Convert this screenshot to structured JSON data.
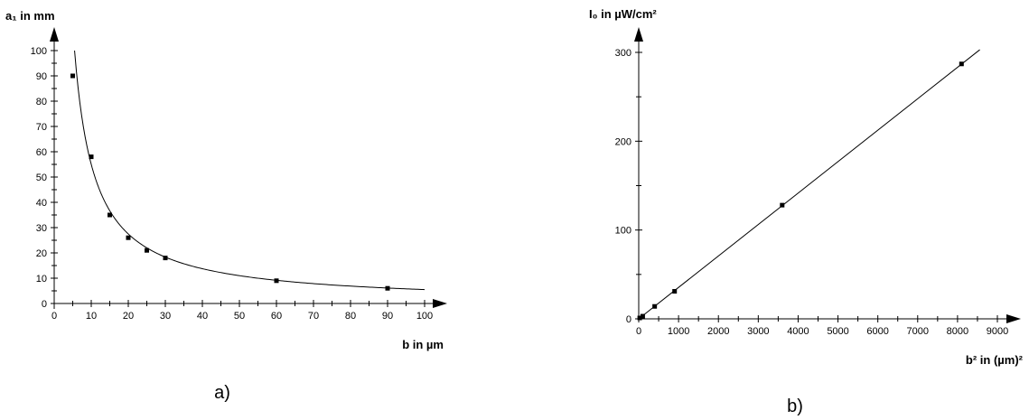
{
  "chart_data": [
    {
      "type": "scatter",
      "caption": "a)",
      "xlabel": "b in µm",
      "ylabel": "a₁ in mm",
      "xlim": [
        0,
        100
      ],
      "ylim": [
        0,
        100
      ],
      "x_ticks": [
        0,
        10,
        20,
        30,
        40,
        50,
        60,
        70,
        80,
        90,
        100
      ],
      "y_ticks": [
        0,
        10,
        20,
        30,
        40,
        50,
        60,
        70,
        80,
        90,
        100
      ],
      "grid": false,
      "series": [
        {
          "points": [
            {
              "x": 5,
              "y": 90
            },
            {
              "x": 10,
              "y": 58
            },
            {
              "x": 15,
              "y": 35
            },
            {
              "x": 20,
              "y": 26
            },
            {
              "x": 25,
              "y": 21
            },
            {
              "x": 30,
              "y": 18
            },
            {
              "x": 60,
              "y": 9
            },
            {
              "x": 90,
              "y": 6
            }
          ],
          "fit": {
            "form": "y = k / x",
            "k": 550
          }
        }
      ]
    },
    {
      "type": "scatter",
      "caption": "b)",
      "xlabel": "b² in (µm)²",
      "ylabel": "I₀ in µW/cm²",
      "xlim": [
        0,
        9000
      ],
      "ylim": [
        0,
        300
      ],
      "x_ticks": [
        0,
        1000,
        2000,
        3000,
        4000,
        5000,
        6000,
        7000,
        8000,
        9000
      ],
      "y_ticks": [
        0,
        100,
        200,
        300
      ],
      "grid": false,
      "series": [
        {
          "points": [
            {
              "x": 25,
              "y": 1
            },
            {
              "x": 100,
              "y": 3
            },
            {
              "x": 400,
              "y": 14
            },
            {
              "x": 900,
              "y": 31
            },
            {
              "x": 3600,
              "y": 128
            },
            {
              "x": 8100,
              "y": 287
            }
          ],
          "fit": {
            "form": "y = m * x",
            "m": 0.0354
          }
        }
      ]
    }
  ]
}
